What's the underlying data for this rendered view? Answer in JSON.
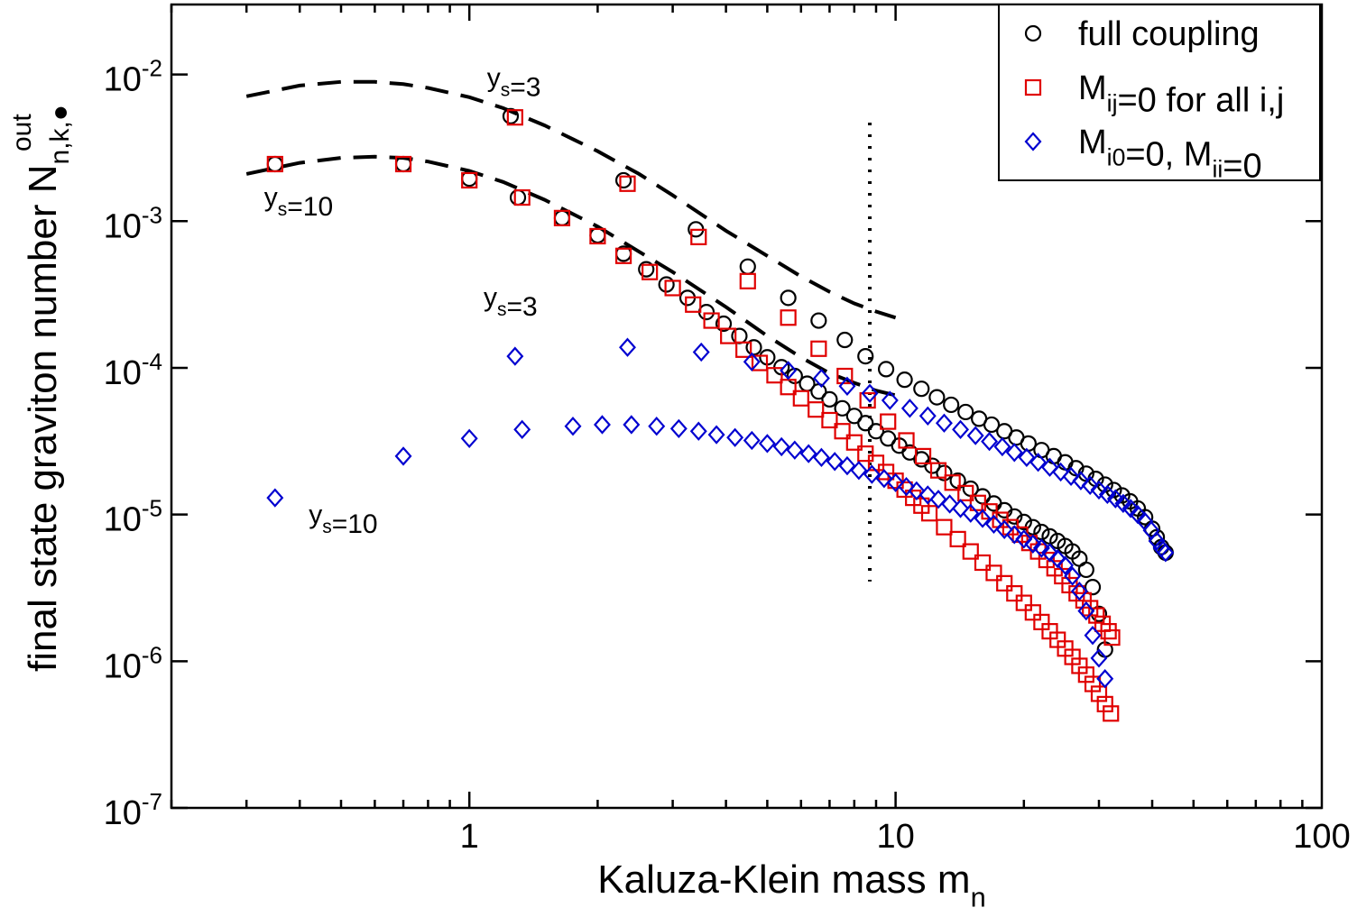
{
  "chart_data": {
    "type": "scatter",
    "title": "",
    "xlabel": {
      "main": "Kaluza-Klein mass m",
      "sub": "n"
    },
    "ylabel": {
      "main": "final state graviton number N",
      "sub": "n,k,●",
      "sup": "out"
    },
    "x_scale": "log",
    "y_scale": "log",
    "xlim": [
      0.2,
      100
    ],
    "ylim": [
      1e-07,
      0.03
    ],
    "grid": false,
    "x_ticks": [
      {
        "value": 1,
        "label": "1"
      },
      {
        "value": 10,
        "label": "10"
      },
      {
        "value": 100,
        "label": "100"
      }
    ],
    "y_ticks": [
      {
        "value": 1e-07,
        "base": "10",
        "exp": "-7"
      },
      {
        "value": 1e-06,
        "base": "10",
        "exp": "-6"
      },
      {
        "value": 1e-05,
        "base": "10",
        "exp": "-5"
      },
      {
        "value": 0.0001,
        "base": "10",
        "exp": "-4"
      },
      {
        "value": 0.001,
        "base": "10",
        "exp": "-3"
      },
      {
        "value": 0.01,
        "base": "10",
        "exp": "-2"
      }
    ],
    "legend_position": "top-right",
    "legend": [
      {
        "series": "full",
        "parts": [
          {
            "t": "full coupling",
            "s": ""
          }
        ]
      },
      {
        "series": "mij",
        "parts": [
          {
            "t": "M",
            "s": ""
          },
          {
            "t": "ij",
            "s": "sub"
          },
          {
            "t": "=0 for all i,j",
            "s": ""
          }
        ]
      },
      {
        "series": "mi0",
        "parts": [
          {
            "t": "M",
            "s": ""
          },
          {
            "t": "i0",
            "s": "sub"
          },
          {
            "t": "=0, M",
            "s": ""
          },
          {
            "t": "ii",
            "s": "sub"
          },
          {
            "t": "=0",
            "s": ""
          }
        ]
      }
    ],
    "series": [
      {
        "id": "full",
        "marker": "circle",
        "color": "#000000",
        "x": [
          0.35,
          0.7,
          1.0,
          1.3,
          1.65,
          2.0,
          2.3,
          2.6,
          2.9,
          3.25,
          3.6,
          3.95,
          4.3,
          4.65,
          5.0,
          5.4,
          5.8,
          6.2,
          6.6,
          7.0,
          7.5,
          8.0,
          8.5,
          9.0,
          9.6,
          10.2,
          10.8,
          11.5,
          12.2,
          13,
          14,
          15,
          16,
          17,
          18,
          19,
          20,
          21,
          22,
          23,
          24,
          25,
          26,
          27,
          28,
          29,
          30,
          31
        ],
        "y": [
          0.00245,
          0.00245,
          0.00195,
          0.00145,
          0.00105,
          0.0008,
          0.0006,
          0.00047,
          0.00037,
          0.0003,
          0.00024,
          0.0002,
          0.000165,
          0.000138,
          0.000118,
          0.000101,
          8.8e-05,
          7.8e-05,
          6.9e-05,
          6.1e-05,
          5.3e-05,
          4.7e-05,
          4.2e-05,
          3.7e-05,
          3.3e-05,
          2.95e-05,
          2.65e-05,
          2.38e-05,
          2.15e-05,
          1.92e-05,
          1.7e-05,
          1.5e-05,
          1.33e-05,
          1.19e-05,
          1.07e-05,
          9.7e-06,
          8.9e-06,
          8.2e-06,
          7.6e-06,
          7.1e-06,
          6.6e-06,
          6.1e-06,
          5.6e-06,
          5e-06,
          4.2e-06,
          3.2e-06,
          2.1e-06,
          1.2e-06
        ]
      },
      {
        "id": "full",
        "marker": "circle",
        "color": "#000000",
        "x": [
          1.25,
          2.3,
          3.4,
          4.5,
          5.6,
          6.6,
          7.6,
          8.5,
          9.5,
          10.5,
          11.5,
          12.5,
          13.5,
          14.6,
          15.7,
          16.8,
          18,
          19.2,
          20.5,
          22,
          23.5,
          25,
          26.5,
          28,
          29.5,
          31,
          32.5,
          34,
          35.5,
          37,
          38.5,
          40,
          41,
          42,
          43
        ],
        "y": [
          0.0052,
          0.0019,
          0.00088,
          0.00049,
          0.0003,
          0.00021,
          0.000155,
          0.00012,
          9.8e-05,
          8.3e-05,
          7.2e-05,
          6.3e-05,
          5.6e-05,
          5e-05,
          4.5e-05,
          4.1e-05,
          3.7e-05,
          3.35e-05,
          3.05e-05,
          2.75e-05,
          2.5e-05,
          2.27e-05,
          2.07e-05,
          1.9e-05,
          1.75e-05,
          1.6e-05,
          1.47e-05,
          1.35e-05,
          1.23e-05,
          1.1e-05,
          9.6e-06,
          8e-06,
          7e-06,
          6e-06,
          5.5e-06
        ]
      },
      {
        "id": "mij",
        "marker": "square",
        "color": "#e00000",
        "x": [
          0.35,
          0.7,
          1.0,
          1.33,
          1.65,
          2.0,
          2.3,
          2.65,
          3.0,
          3.35,
          3.7,
          4.05,
          4.4,
          4.8,
          5.2,
          5.6,
          6.0,
          6.5,
          7.0,
          7.5,
          8.0,
          8.5,
          9.0,
          9.5,
          10,
          10.5,
          11,
          11.5,
          12,
          13,
          14,
          15,
          16,
          17,
          18,
          19,
          20,
          21,
          22,
          23,
          24,
          25,
          26,
          27,
          28,
          29,
          30,
          31,
          32
        ],
        "y": [
          0.00245,
          0.00245,
          0.0019,
          0.00145,
          0.00105,
          0.00079,
          0.00058,
          0.00045,
          0.00035,
          0.00027,
          0.00021,
          0.000165,
          0.000133,
          0.000108,
          8.9e-05,
          7.4e-05,
          6.2e-05,
          5.2e-05,
          4.4e-05,
          3.7e-05,
          3.1e-05,
          2.6e-05,
          2.25e-05,
          1.95e-05,
          1.7e-05,
          1.48e-05,
          1.3e-05,
          1.15e-05,
          1.02e-05,
          8.2e-06,
          6.8e-06,
          5.6e-06,
          4.7e-06,
          4e-06,
          3.4e-06,
          2.9e-06,
          2.5e-06,
          2.15e-06,
          1.85e-06,
          1.6e-06,
          1.4e-06,
          1.22e-06,
          1.07e-06,
          9.3e-07,
          8.1e-07,
          7e-07,
          6e-07,
          5.1e-07,
          4.4e-07
        ]
      },
      {
        "id": "mij",
        "marker": "square",
        "color": "#e00000",
        "x": [
          1.28,
          2.35,
          3.45,
          4.5,
          5.6,
          6.6,
          7.6,
          8.6,
          9.6,
          10.6,
          11.6,
          12.6,
          13.6,
          14.6,
          15.6,
          16.6,
          17.6,
          18.6,
          19.6,
          20.6,
          21.6,
          22.6,
          23.6,
          24.6,
          25.6,
          26.6,
          27.6,
          28.6,
          29.6,
          30.6,
          31.6,
          32.2
        ],
        "y": [
          0.0051,
          0.0018,
          0.00078,
          0.00039,
          0.00022,
          0.000135,
          8.8e-05,
          6e-05,
          4.3e-05,
          3.2e-05,
          2.5e-05,
          2e-05,
          1.65e-05,
          1.4e-05,
          1.2e-05,
          1.05e-05,
          9.2e-06,
          8.2e-06,
          7.3e-06,
          6.4e-06,
          5.6e-06,
          4.9e-06,
          4.3e-06,
          3.8e-06,
          3.3e-06,
          2.9e-06,
          2.6e-06,
          2.3e-06,
          2.05e-06,
          1.8e-06,
          1.6e-06,
          1.45e-06
        ]
      },
      {
        "id": "mi0",
        "marker": "diamond",
        "color": "#0000d0",
        "x": [
          0.35,
          0.7,
          1.0,
          1.33,
          1.75,
          2.05,
          2.4,
          2.75,
          3.1,
          3.45,
          3.8,
          4.2,
          4.6,
          5.0,
          5.4,
          5.8,
          6.25,
          6.7,
          7.2,
          7.7,
          8.2,
          8.8,
          9.4,
          10,
          10.6,
          11.2,
          11.9,
          12.6,
          13.4,
          14.2,
          15,
          16,
          17,
          18,
          19,
          20,
          21,
          22,
          23,
          24,
          25,
          26,
          27,
          28,
          29,
          30,
          31
        ],
        "y": [
          1.3e-05,
          2.5e-05,
          3.3e-05,
          3.8e-05,
          4e-05,
          4.1e-05,
          4.1e-05,
          4e-05,
          3.85e-05,
          3.7e-05,
          3.5e-05,
          3.35e-05,
          3.2e-05,
          3.05e-05,
          2.9e-05,
          2.75e-05,
          2.6e-05,
          2.45e-05,
          2.3e-05,
          2.15e-05,
          2e-05,
          1.88e-05,
          1.76e-05,
          1.65e-05,
          1.55e-05,
          1.45e-05,
          1.36e-05,
          1.27e-05,
          1.18e-05,
          1.1e-05,
          1.02e-05,
          9.4e-06,
          8.6e-06,
          7.9e-06,
          7.3e-06,
          6.8e-06,
          6.3e-06,
          5.9e-06,
          5.5e-06,
          5e-06,
          4.5e-06,
          3.8e-06,
          3e-06,
          2.2e-06,
          1.5e-06,
          1.05e-06,
          7.6e-07
        ]
      },
      {
        "id": "mi0",
        "marker": "diamond",
        "color": "#0000d0",
        "x": [
          1.28,
          2.35,
          3.5,
          4.6,
          5.6,
          6.7,
          7.7,
          8.7,
          9.7,
          10.8,
          11.9,
          13,
          14.2,
          15.4,
          16.6,
          17.8,
          19,
          20.3,
          21.6,
          23,
          24.4,
          25.8,
          27.2,
          28.6,
          30,
          31.4,
          32.8,
          34.2,
          35.6,
          37,
          38.4,
          39.8,
          41,
          42,
          43
        ],
        "y": [
          0.00012,
          0.000138,
          0.000128,
          0.00011,
          9.6e-05,
          8.5e-05,
          7.5e-05,
          6.7e-05,
          6e-05,
          5.3e-05,
          4.7e-05,
          4.2e-05,
          3.8e-05,
          3.45e-05,
          3.15e-05,
          2.9e-05,
          2.65e-05,
          2.45e-05,
          2.27e-05,
          2.1e-05,
          1.95e-05,
          1.82e-05,
          1.7e-05,
          1.58e-05,
          1.47e-05,
          1.37e-05,
          1.28e-05,
          1.19e-05,
          1.1e-05,
          1e-05,
          9e-06,
          7.8e-06,
          6.6e-06,
          5.9e-06,
          5.5e-06
        ]
      }
    ],
    "curves": [
      {
        "style": "dashed",
        "color": "#000000",
        "x": [
          0.3,
          0.4,
          0.5,
          0.6,
          0.7,
          0.8,
          1.0,
          1.2,
          1.5,
          2.0,
          2.5,
          3.0,
          4.0,
          5.0,
          6.0,
          7.0,
          8.0,
          9.0,
          10.0
        ],
        "y": [
          0.0071,
          0.0084,
          0.0089,
          0.0089,
          0.0086,
          0.0081,
          0.007,
          0.0059,
          0.0045,
          0.003,
          0.0021,
          0.0015,
          0.00086,
          0.00058,
          0.00042,
          0.00033,
          0.000275,
          0.000242,
          0.00022
        ]
      },
      {
        "style": "dashed",
        "color": "#000000",
        "x": [
          0.3,
          0.4,
          0.5,
          0.6,
          0.7,
          0.8,
          1.0,
          1.2,
          1.5,
          2.0,
          2.5,
          3.0,
          4.0,
          5.0,
          6.0,
          7.0,
          8.0,
          9.0,
          10.0
        ],
        "y": [
          0.0021,
          0.0025,
          0.0027,
          0.00275,
          0.0027,
          0.00255,
          0.0022,
          0.00185,
          0.0014,
          0.00092,
          0.00062,
          0.00045,
          0.00026,
          0.000165,
          0.000118,
          9.2e-05,
          7.9e-05,
          7e-05,
          6.5e-05
        ]
      }
    ],
    "vline": {
      "x": 8.7,
      "y_range": [
        3.5e-06,
        0.0047
      ],
      "style": "dotted"
    },
    "annotations": [
      {
        "x": 1.1,
        "y": 0.0083,
        "text": "y",
        "sub": "s",
        "rest": "=3"
      },
      {
        "x": 0.33,
        "y": 0.00127,
        "text": "y",
        "sub": "s",
        "rest": "=10"
      },
      {
        "x": 1.08,
        "y": 0.000264,
        "text": "y",
        "sub": "s",
        "rest": "=3"
      },
      {
        "x": 0.42,
        "y": 8.7e-06,
        "text": "y",
        "sub": "s",
        "rest": "=10"
      }
    ]
  }
}
